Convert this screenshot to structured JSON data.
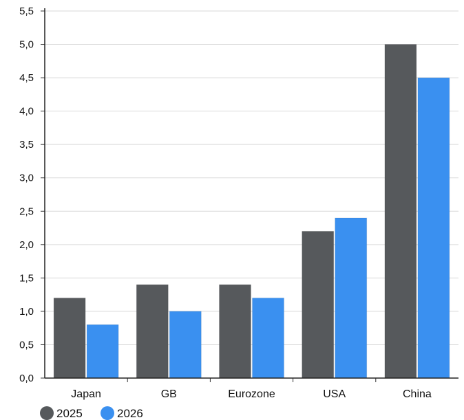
{
  "chart_data": {
    "type": "bar",
    "title": "",
    "xlabel": "",
    "ylabel": "",
    "categories": [
      "Japan",
      "GB",
      "Eurozone",
      "USA",
      "China"
    ],
    "series": [
      {
        "name": "2025",
        "color": "#56595c",
        "values": [
          1.2,
          1.4,
          1.4,
          2.2,
          5.0
        ]
      },
      {
        "name": "2026",
        "color": "#3a90f0",
        "values": [
          0.8,
          1.0,
          1.2,
          2.4,
          4.5
        ]
      }
    ],
    "ylim": [
      0,
      5.5
    ],
    "yticks": [
      "0,0",
      "0,5",
      "1,0",
      "1,5",
      "2,0",
      "2,5",
      "3,0",
      "3,5",
      "4,0",
      "4,5",
      "5,0",
      "5,5"
    ],
    "grid": true,
    "legend_position": "bottom-left"
  }
}
